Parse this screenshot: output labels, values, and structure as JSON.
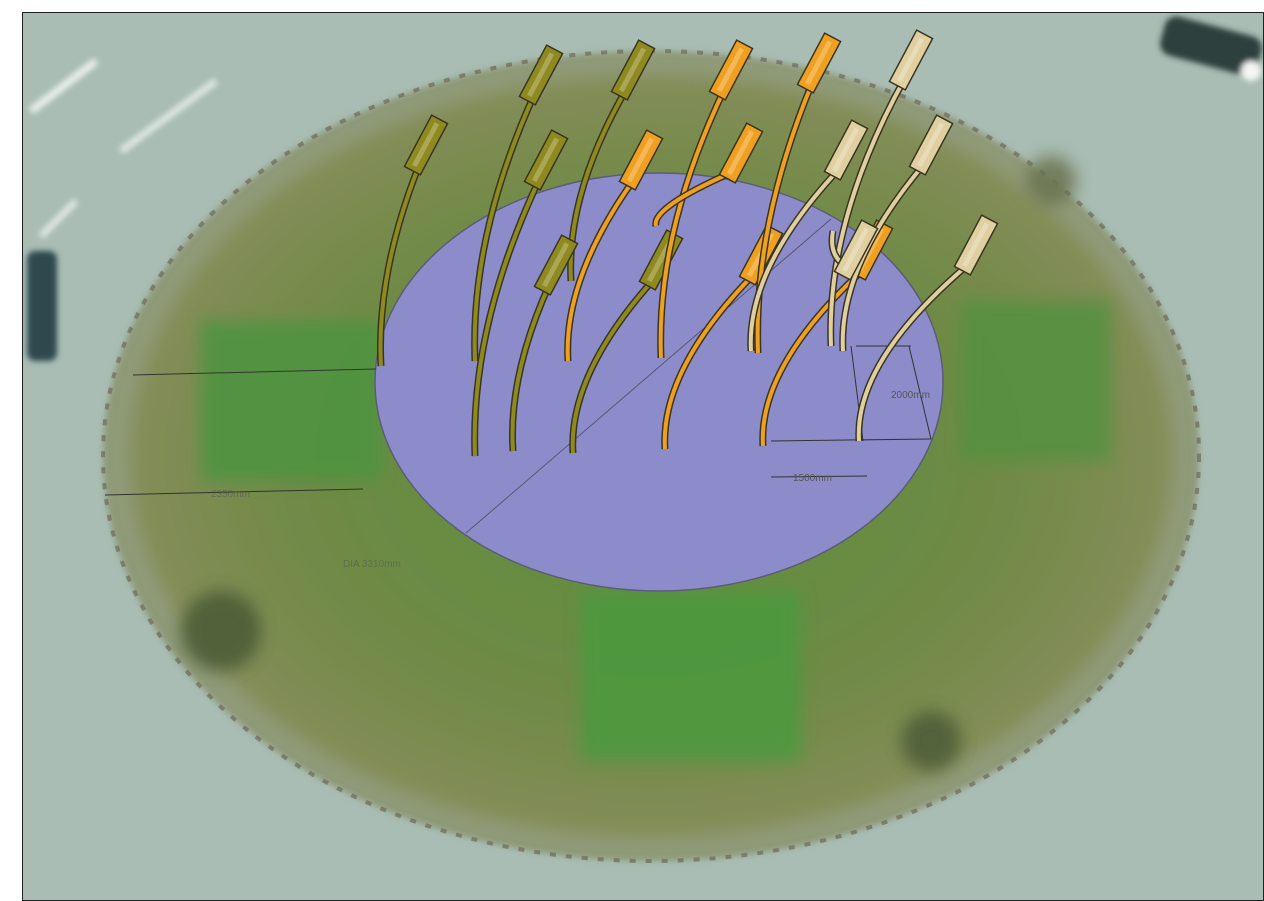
{
  "colors": {
    "road": "#9fb3ab",
    "grass_outer": "#7d8a52",
    "grass_inner": "#4f8a3a",
    "platform": "#8b8bc8",
    "sculpture_olive": "#8f8a1f",
    "sculpture_orange": "#f0a020",
    "sculpture_beige": "#e0cfa0"
  },
  "dimensions": {
    "height_label": "2000mm",
    "spacing_label": "1500mm",
    "offset_label": "2350mm",
    "diameter_label": "DIA 3310mm"
  },
  "sculptures": [
    {
      "color": "olive",
      "order": 1
    },
    {
      "color": "olive",
      "order": 2
    },
    {
      "color": "olive",
      "order": 3
    },
    {
      "color": "olive",
      "order": 4
    },
    {
      "color": "olive",
      "order": 5
    },
    {
      "color": "olive",
      "order": 6
    },
    {
      "color": "orange",
      "order": 7
    },
    {
      "color": "orange",
      "order": 8
    },
    {
      "color": "orange",
      "order": 9
    },
    {
      "color": "orange",
      "order": 10
    },
    {
      "color": "orange",
      "order": 11
    },
    {
      "color": "orange",
      "order": 12
    },
    {
      "color": "beige",
      "order": 13
    },
    {
      "color": "beige",
      "order": 14
    },
    {
      "color": "beige",
      "order": 15
    },
    {
      "color": "beige",
      "order": 16
    },
    {
      "color": "beige",
      "order": 17
    }
  ]
}
